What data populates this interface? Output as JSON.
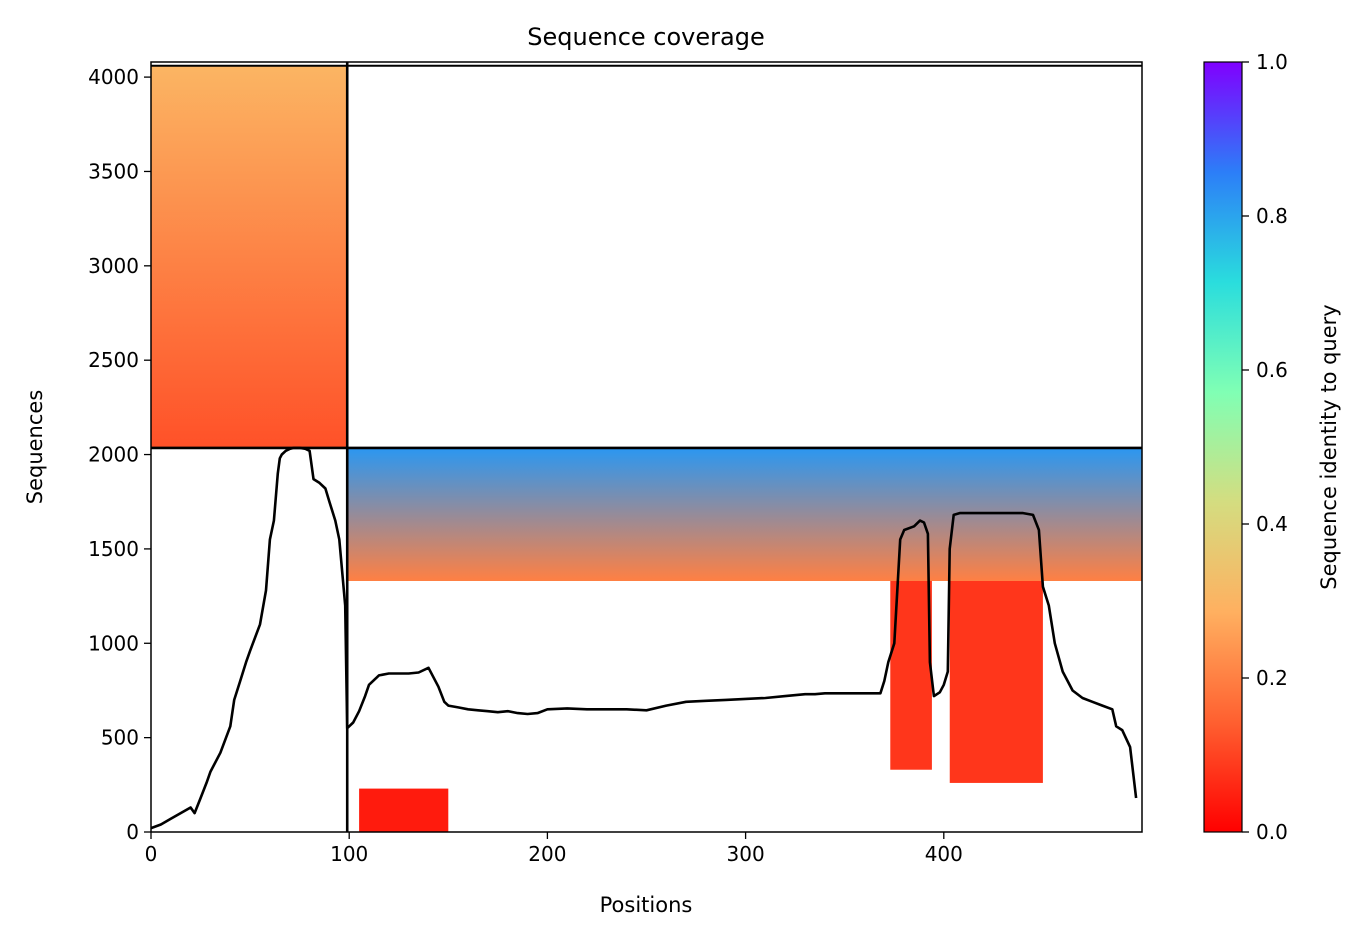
{
  "chart_data": {
    "type": "heatmap",
    "title": "Sequence coverage",
    "xlabel": "Positions",
    "ylabel": "Sequences",
    "xlim": [
      0,
      500
    ],
    "ylim": [
      0,
      4080
    ],
    "x_ticks": [
      0,
      100,
      200,
      300,
      400
    ],
    "y_ticks": [
      0,
      500,
      1000,
      1500,
      2000,
      2500,
      3000,
      3500,
      4000
    ],
    "colorbar": {
      "label": "Sequence identity to query",
      "range": [
        0,
        1
      ],
      "ticks": [
        "0.0",
        "0.2",
        "0.4",
        "0.6",
        "0.8",
        "1.0"
      ],
      "colormap": "rainbow_r",
      "colors": [
        "#ff0000",
        "#ff6030",
        "#ffb060",
        "#d4dd80",
        "#80ffb4",
        "#2adddd",
        "#2c7ef8",
        "#8000ff"
      ]
    },
    "chain_break_x": 99,
    "chain_break_y": 2035,
    "msa_blocks": [
      {
        "x_start": 0,
        "x_end": 99,
        "y_start": 2035,
        "y_end": 4060,
        "identity_top": 0.3,
        "identity_bottom": 0.12
      },
      {
        "x_start": 99,
        "x_end": 500,
        "y_start": 1330,
        "y_end": 2035,
        "identity_top": 0.82,
        "identity_bottom": 0.2
      },
      {
        "x_start": 373,
        "x_end": 394,
        "y_start": 330,
        "y_end": 1330,
        "identity_top": 0.08,
        "identity_bottom": 0.08
      },
      {
        "x_start": 403,
        "x_end": 450,
        "y_start": 260,
        "y_end": 1330,
        "identity_top": 0.08,
        "identity_bottom": 0.08
      },
      {
        "x_start": 105,
        "x_end": 150,
        "y_start": 0,
        "y_end": 230,
        "identity_top": 0.04,
        "identity_bottom": 0.04
      }
    ],
    "series": [
      {
        "type": "line",
        "x": [
          0,
          5,
          10,
          15,
          20,
          22,
          25,
          28,
          30,
          35,
          40,
          42,
          45,
          48,
          50,
          55,
          58,
          60,
          62,
          64,
          65,
          66,
          68,
          70,
          72,
          75,
          78,
          80,
          82,
          85,
          88,
          90,
          93,
          95,
          98,
          99,
          100,
          102,
          105,
          108,
          110,
          115,
          120,
          125,
          130,
          135,
          140,
          145,
          148,
          150,
          155,
          160,
          165,
          170,
          175,
          180,
          185,
          190,
          195,
          200,
          210,
          220,
          230,
          240,
          250,
          260,
          270,
          280,
          290,
          300,
          310,
          320,
          330,
          335,
          340,
          350,
          360,
          365,
          368,
          370,
          372,
          375,
          378,
          380,
          385,
          388,
          390,
          392,
          393,
          395,
          398,
          400,
          402,
          403,
          405,
          408,
          410,
          420,
          430,
          440,
          445,
          448,
          450,
          453,
          456,
          460,
          465,
          470,
          475,
          480,
          485,
          487,
          490,
          494,
          497
        ],
        "y": [
          20,
          40,
          70,
          100,
          130,
          100,
          180,
          260,
          320,
          420,
          560,
          700,
          800,
          900,
          960,
          1100,
          1280,
          1550,
          1650,
          1900,
          1980,
          2000,
          2020,
          2030,
          2035,
          2035,
          2030,
          2020,
          1870,
          1850,
          1820,
          1750,
          1650,
          1550,
          1200,
          550,
          560,
          580,
          640,
          720,
          780,
          830,
          840,
          840,
          840,
          845,
          870,
          770,
          690,
          670,
          660,
          650,
          645,
          640,
          635,
          640,
          630,
          625,
          630,
          650,
          655,
          650,
          650,
          650,
          645,
          670,
          690,
          695,
          700,
          705,
          710,
          720,
          730,
          730,
          735,
          735,
          735,
          735,
          735,
          800,
          900,
          1000,
          1550,
          1600,
          1620,
          1650,
          1640,
          1580,
          900,
          720,
          740,
          780,
          850,
          1500,
          1680,
          1690,
          1690,
          1690,
          1690,
          1690,
          1680,
          1600,
          1300,
          1200,
          1000,
          850,
          750,
          710,
          690,
          670,
          650,
          560,
          540,
          450,
          180
        ]
      }
    ]
  }
}
